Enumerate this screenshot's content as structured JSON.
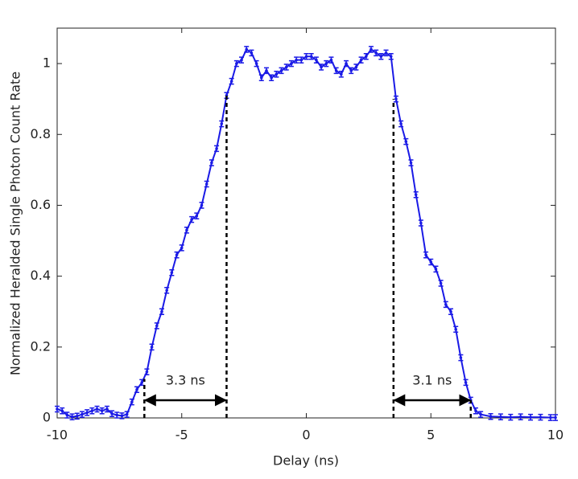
{
  "chart_data": {
    "type": "line",
    "xlabel": "Delay (ns)",
    "ylabel": "Normalized Heralded Single Photon Count Rate",
    "xlim": [
      -10,
      10
    ],
    "ylim": [
      0,
      1.1
    ],
    "xticks": [
      -10,
      -5,
      0,
      5,
      10
    ],
    "yticks": [
      0,
      0.2,
      0.4,
      0.6,
      0.8,
      1
    ],
    "error": 0.008,
    "series": [
      {
        "color": "#1a1ae6",
        "x": [
          -10,
          -9.8,
          -9.6,
          -9.4,
          -9.2,
          -9,
          -8.8,
          -8.6,
          -8.4,
          -8.2,
          -8,
          -7.8,
          -7.6,
          -7.4,
          -7.2,
          -7,
          -6.8,
          -6.6,
          -6.4,
          -6.2,
          -6,
          -5.8,
          -5.6,
          -5.4,
          -5.2,
          -5,
          -4.8,
          -4.6,
          -4.4,
          -4.2,
          -4,
          -3.8,
          -3.6,
          -3.4,
          -3.2,
          -3,
          -2.8,
          -2.6,
          -2.4,
          -2.2,
          -2,
          -1.8,
          -1.6,
          -1.4,
          -1.2,
          -1,
          -0.8,
          -0.6,
          -0.4,
          -0.2,
          0,
          0.2,
          0.4,
          0.6,
          0.8,
          1,
          1.2,
          1.4,
          1.6,
          1.8,
          2,
          2.2,
          2.4,
          2.6,
          2.8,
          3,
          3.2,
          3.4,
          3.6,
          3.8,
          4,
          4.2,
          4.4,
          4.6,
          4.8,
          5,
          5.2,
          5.4,
          5.6,
          5.8,
          6,
          6.2,
          6.4,
          6.6,
          6.8,
          7,
          7.4,
          7.8,
          8.2,
          8.6,
          9,
          9.4,
          9.8,
          10
        ],
        "values": [
          0.025,
          0.02,
          0.008,
          0.003,
          0.005,
          0.01,
          0.015,
          0.02,
          0.025,
          0.02,
          0.025,
          0.012,
          0.008,
          0.006,
          0.01,
          0.045,
          0.08,
          0.1,
          0.13,
          0.2,
          0.26,
          0.3,
          0.36,
          0.41,
          0.46,
          0.48,
          0.53,
          0.56,
          0.57,
          0.6,
          0.66,
          0.72,
          0.76,
          0.83,
          0.91,
          0.95,
          1,
          1.01,
          1.04,
          1.03,
          1,
          0.96,
          0.98,
          0.96,
          0.97,
          0.98,
          0.99,
          1,
          1.01,
          1.01,
          1.02,
          1.02,
          1.01,
          0.99,
          1,
          1.01,
          0.98,
          0.97,
          1,
          0.98,
          0.99,
          1.01,
          1.02,
          1.04,
          1.03,
          1.02,
          1.03,
          1.02,
          0.9,
          0.83,
          0.78,
          0.72,
          0.63,
          0.55,
          0.46,
          0.44,
          0.42,
          0.38,
          0.32,
          0.3,
          0.25,
          0.17,
          0.1,
          0.05,
          0.02,
          0.01,
          0.004,
          0.003,
          0.002,
          0.003,
          0.002,
          0.002,
          0.001,
          0.001
        ]
      }
    ],
    "annotations": [
      {
        "text": "3.3 ns",
        "x1": -6.5,
        "x2": -3.2,
        "y": 0.05,
        "y_top1": 0.11,
        "y_top2": 0.91
      },
      {
        "text": "3.1 ns",
        "x1": 3.5,
        "x2": 6.6,
        "y": 0.05,
        "y_top1": 0.9,
        "y_top2": 0.05
      }
    ]
  }
}
